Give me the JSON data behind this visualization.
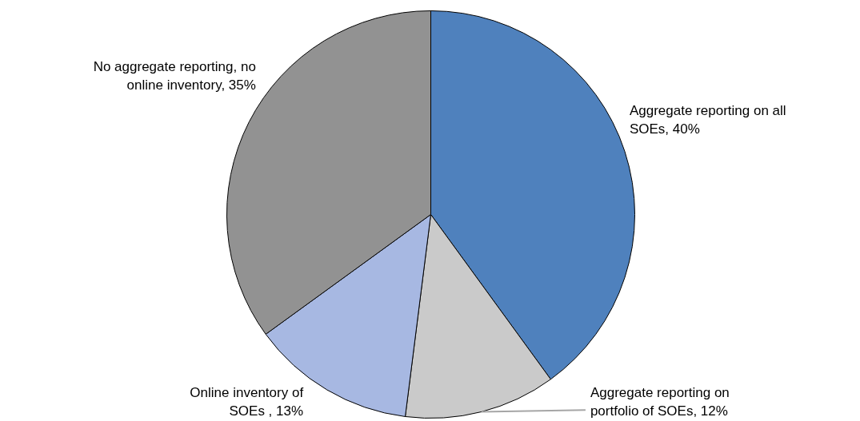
{
  "chart_data": {
    "type": "pie",
    "categories": [
      "Aggregate reporting on all SOEs",
      "Aggregate reporting on portfolio of SOEs",
      "Online inventory of SOEs ",
      "No aggregate reporting, no online inventory"
    ],
    "values": [
      40,
      12,
      13,
      35
    ],
    "colors": [
      "#4f81bd",
      "#cacaca",
      "#a7b8e2",
      "#929292"
    ],
    "value_labels": [
      "40%",
      "12%",
      "13%",
      "35%"
    ]
  }
}
